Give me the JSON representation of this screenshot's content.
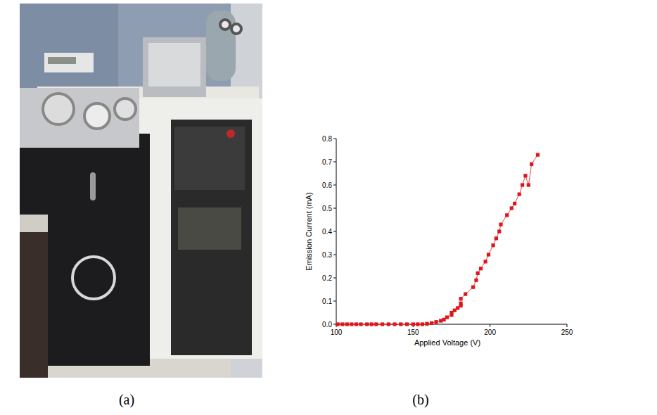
{
  "chart_data": {
    "type": "line",
    "x_label": "Applied Voltage (V)",
    "y_label": "Emission Current (mA)",
    "annotations": [
      "(a)",
      "(b)"
    ],
    "x": [
      101,
      104,
      107,
      110,
      113,
      116,
      120,
      123,
      126,
      130,
      134,
      138,
      142,
      146,
      150,
      153,
      156,
      159,
      162,
      165,
      168,
      170,
      172,
      175,
      175,
      177,
      179,
      181,
      181,
      181,
      184,
      189,
      191,
      192,
      194,
      197,
      199,
      202,
      204,
      206,
      207,
      211,
      214,
      216,
      219,
      221,
      223,
      225,
      227,
      231
    ],
    "series": [
      {
        "name": "Emission Current",
        "color": "#e0141b",
        "marker": "square",
        "line_style": "solid",
        "values": [
          0,
          0,
          0,
          0,
          0,
          0,
          0,
          0,
          0,
          0,
          0,
          0,
          0,
          0,
          0,
          0,
          0,
          0.002,
          0.005,
          0.01,
          0.015,
          0.02,
          0.03,
          0.04,
          0.05,
          0.06,
          0.07,
          0.08,
          0.09,
          0.11,
          0.13,
          0.16,
          0.19,
          0.22,
          0.24,
          0.27,
          0.3,
          0.34,
          0.37,
          0.4,
          0.43,
          0.47,
          0.5,
          0.52,
          0.56,
          0.6,
          0.64,
          0.6,
          0.69,
          0.73
        ]
      }
    ],
    "xlim": [
      100,
      250
    ],
    "xticks": [
      100,
      150,
      200,
      250
    ],
    "ylim": [
      0,
      0.8
    ],
    "yticks": [
      {
        "value": 0,
        "label": "0.0"
      },
      0.1,
      0.2,
      0.3,
      0.4,
      0.5,
      0.6,
      0.7,
      0.8
    ],
    "grid": false
  }
}
